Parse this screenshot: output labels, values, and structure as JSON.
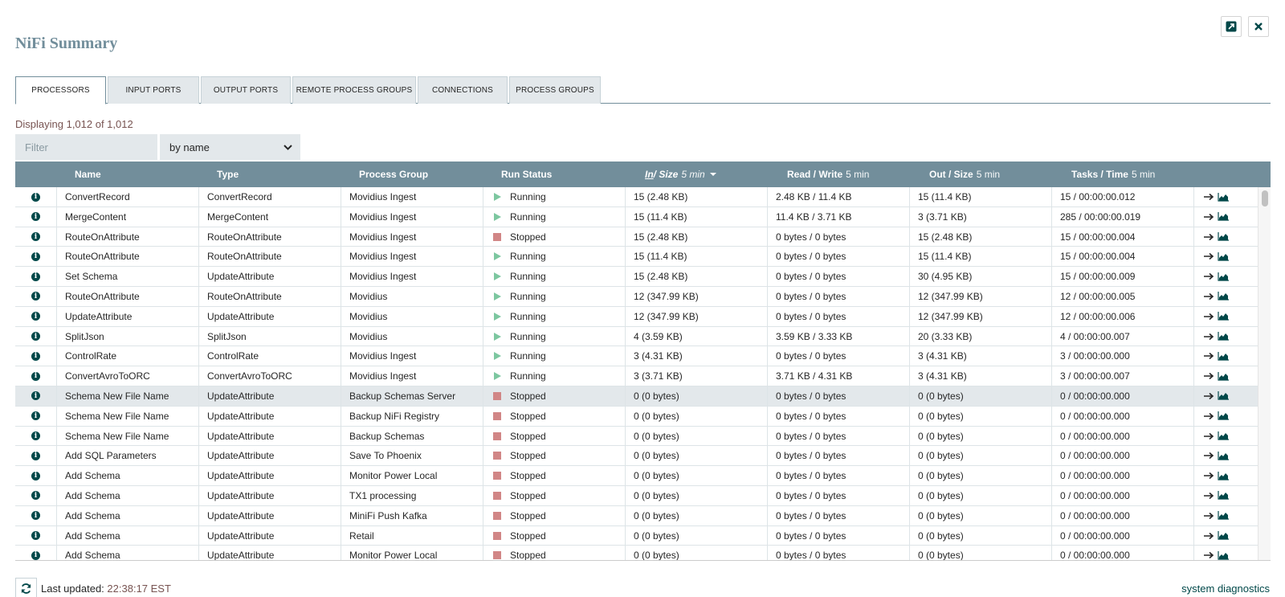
{
  "window": {
    "title": "NiFi Summary",
    "popout_icon": "external-link-icon",
    "close_icon": "close-icon"
  },
  "tabs": [
    {
      "label": "PROCESSORS",
      "active": true
    },
    {
      "label": "INPUT PORTS",
      "active": false
    },
    {
      "label": "OUTPUT PORTS",
      "active": false
    },
    {
      "label": "REMOTE PROCESS GROUPS",
      "active": false
    },
    {
      "label": "CONNECTIONS",
      "active": false
    },
    {
      "label": "PROCESS GROUPS",
      "active": false
    }
  ],
  "displaying": "Displaying 1,012 of 1,012",
  "filter": {
    "placeholder": "Filter",
    "type_selected": "by name"
  },
  "columns": {
    "name": "Name",
    "type": "Type",
    "process_group": "Process Group",
    "run_status": "Run Status",
    "in_u": "In",
    "in_rest": " / Size",
    "in_sub": "5 min",
    "rw": "Read / Write",
    "rw_sub": "5 min",
    "out": "Out / Size",
    "out_sub": "5 min",
    "tasks": "Tasks / Time",
    "tasks_sub": "5 min"
  },
  "rows": [
    {
      "name": "ConvertRecord",
      "type": "ConvertRecord",
      "group": "Movidius Ingest",
      "status": "Running",
      "in": "15 (2.48 KB)",
      "rw": "2.48 KB / 11.4 KB",
      "out": "15 (11.4 KB)",
      "tasks": "15 / 00:00:00.012"
    },
    {
      "name": "MergeContent",
      "type": "MergeContent",
      "group": "Movidius Ingest",
      "status": "Running",
      "in": "15 (11.4 KB)",
      "rw": "11.4 KB / 3.71 KB",
      "out": "3 (3.71 KB)",
      "tasks": "285 / 00:00:00.019"
    },
    {
      "name": "RouteOnAttribute",
      "type": "RouteOnAttribute",
      "group": "Movidius Ingest",
      "status": "Stopped",
      "in": "15 (2.48 KB)",
      "rw": "0 bytes / 0 bytes",
      "out": "15 (2.48 KB)",
      "tasks": "15 / 00:00:00.004"
    },
    {
      "name": "RouteOnAttribute",
      "type": "RouteOnAttribute",
      "group": "Movidius Ingest",
      "status": "Running",
      "in": "15 (11.4 KB)",
      "rw": "0 bytes / 0 bytes",
      "out": "15 (11.4 KB)",
      "tasks": "15 / 00:00:00.004"
    },
    {
      "name": "Set Schema",
      "type": "UpdateAttribute",
      "group": "Movidius Ingest",
      "status": "Running",
      "in": "15 (2.48 KB)",
      "rw": "0 bytes / 0 bytes",
      "out": "30 (4.95 KB)",
      "tasks": "15 / 00:00:00.009"
    },
    {
      "name": "RouteOnAttribute",
      "type": "RouteOnAttribute",
      "group": "Movidius",
      "status": "Running",
      "in": "12 (347.99 KB)",
      "rw": "0 bytes / 0 bytes",
      "out": "12 (347.99 KB)",
      "tasks": "12 / 00:00:00.005"
    },
    {
      "name": "UpdateAttribute",
      "type": "UpdateAttribute",
      "group": "Movidius",
      "status": "Running",
      "in": "12 (347.99 KB)",
      "rw": "0 bytes / 0 bytes",
      "out": "12 (347.99 KB)",
      "tasks": "12 / 00:00:00.006"
    },
    {
      "name": "SplitJson",
      "type": "SplitJson",
      "group": "Movidius",
      "status": "Running",
      "in": "4 (3.59 KB)",
      "rw": "3.59 KB / 3.33 KB",
      "out": "20 (3.33 KB)",
      "tasks": "4 / 00:00:00.007"
    },
    {
      "name": "ControlRate",
      "type": "ControlRate",
      "group": "Movidius Ingest",
      "status": "Running",
      "in": "3 (4.31 KB)",
      "rw": "0 bytes / 0 bytes",
      "out": "3 (4.31 KB)",
      "tasks": "3 / 00:00:00.000"
    },
    {
      "name": "ConvertAvroToORC",
      "type": "ConvertAvroToORC",
      "group": "Movidius Ingest",
      "status": "Running",
      "in": "3 (3.71 KB)",
      "rw": "3.71 KB / 4.31 KB",
      "out": "3 (4.31 KB)",
      "tasks": "3 / 00:00:00.007"
    },
    {
      "name": "Schema New File Name",
      "type": "UpdateAttribute",
      "group": "Backup Schemas Server",
      "status": "Stopped",
      "in": "0 (0 bytes)",
      "rw": "0 bytes / 0 bytes",
      "out": "0 (0 bytes)",
      "tasks": "0 / 00:00:00.000",
      "selected": true
    },
    {
      "name": "Schema New File Name",
      "type": "UpdateAttribute",
      "group": "Backup NiFi Registry",
      "status": "Stopped",
      "in": "0 (0 bytes)",
      "rw": "0 bytes / 0 bytes",
      "out": "0 (0 bytes)",
      "tasks": "0 / 00:00:00.000"
    },
    {
      "name": "Schema New File Name",
      "type": "UpdateAttribute",
      "group": "Backup Schemas",
      "status": "Stopped",
      "in": "0 (0 bytes)",
      "rw": "0 bytes / 0 bytes",
      "out": "0 (0 bytes)",
      "tasks": "0 / 00:00:00.000"
    },
    {
      "name": "Add SQL Parameters",
      "type": "UpdateAttribute",
      "group": "Save To Phoenix",
      "status": "Stopped",
      "in": "0 (0 bytes)",
      "rw": "0 bytes / 0 bytes",
      "out": "0 (0 bytes)",
      "tasks": "0 / 00:00:00.000"
    },
    {
      "name": "Add Schema",
      "type": "UpdateAttribute",
      "group": "Monitor Power Local",
      "status": "Stopped",
      "in": "0 (0 bytes)",
      "rw": "0 bytes / 0 bytes",
      "out": "0 (0 bytes)",
      "tasks": "0 / 00:00:00.000"
    },
    {
      "name": "Add Schema",
      "type": "UpdateAttribute",
      "group": "TX1 processing",
      "status": "Stopped",
      "in": "0 (0 bytes)",
      "rw": "0 bytes / 0 bytes",
      "out": "0 (0 bytes)",
      "tasks": "0 / 00:00:00.000"
    },
    {
      "name": "Add Schema",
      "type": "UpdateAttribute",
      "group": "MiniFi Push Kafka",
      "status": "Stopped",
      "in": "0 (0 bytes)",
      "rw": "0 bytes / 0 bytes",
      "out": "0 (0 bytes)",
      "tasks": "0 / 00:00:00.000"
    },
    {
      "name": "Add Schema",
      "type": "UpdateAttribute",
      "group": "Retail",
      "status": "Stopped",
      "in": "0 (0 bytes)",
      "rw": "0 bytes / 0 bytes",
      "out": "0 (0 bytes)",
      "tasks": "0 / 00:00:00.000"
    },
    {
      "name": "Add Schema",
      "type": "UpdateAttribute",
      "group": "Monitor Power Local",
      "status": "Stopped",
      "in": "0 (0 bytes)",
      "rw": "0 bytes / 0 bytes",
      "out": "0 (0 bytes)",
      "tasks": "0 / 00:00:00.000"
    }
  ],
  "footer": {
    "last_updated_label": "Last updated:",
    "last_updated_time": "22:38:17 EST",
    "system_diagnostics": "system diagnostics",
    "refresh_icon": "refresh-icon"
  },
  "colors": {
    "header_bg": "#728e9b",
    "title": "#728e9b",
    "running": "#7dc7a0",
    "stopped": "#d18686",
    "link": "#004849",
    "timestamp": "#775351"
  }
}
